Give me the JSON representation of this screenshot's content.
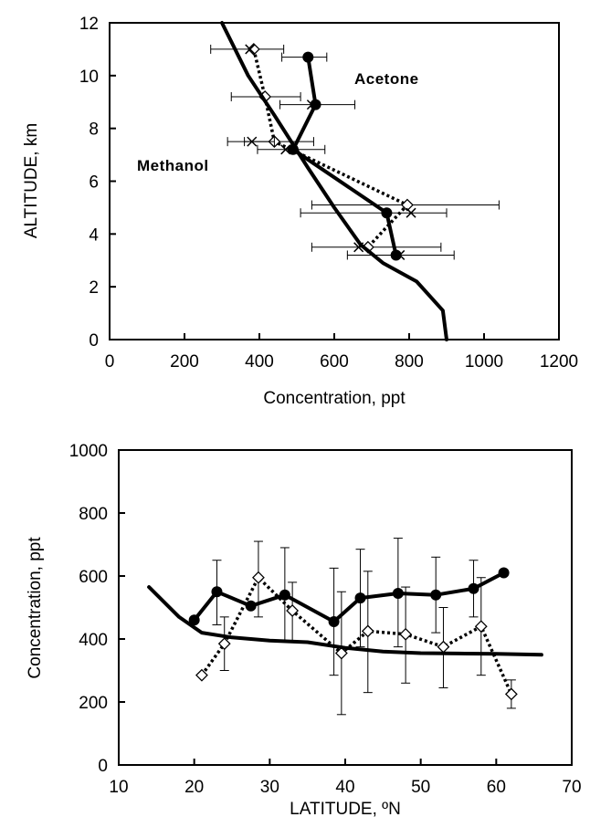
{
  "chart_data": [
    {
      "type": "line",
      "title": "",
      "xlabel": "Concentration, ppt",
      "ylabel": "ALTITUDE, km",
      "xlim": [
        0,
        1200
      ],
      "ylim": [
        0,
        12
      ],
      "xticks": [
        "0",
        "200",
        "400",
        "600",
        "800",
        "1000",
        "1200"
      ],
      "yticks": [
        "0",
        "2",
        "4",
        "6",
        "8",
        "10",
        "12"
      ],
      "grid": false,
      "annotations": [
        {
          "text": "Acetone"
        },
        {
          "text": "Methanol"
        }
      ],
      "series": [
        {
          "style": "thick-solid-filled-circle",
          "points": [
            {
              "x": 530,
              "y": 10.7,
              "xerr_low": 460,
              "xerr_high": 580
            },
            {
              "x": 550,
              "y": 8.9
            },
            {
              "x": 490,
              "y": 7.2
            },
            {
              "x": 740,
              "y": 4.8,
              "xerr_low": 510,
              "xerr_high": 900
            },
            {
              "x": 765,
              "y": 3.2,
              "xerr_low": 635,
              "xerr_high": 920
            }
          ]
        },
        {
          "style": "dotted-open-diamond",
          "points": [
            {
              "x": 385,
              "y": 11.0,
              "xerr_low": 270,
              "xerr_high": 465
            },
            {
              "x": 415,
              "y": 9.2,
              "xerr_low": 325,
              "xerr_high": 510
            },
            {
              "x": 440,
              "y": 7.5,
              "xerr_low": 360,
              "xerr_high": 545
            },
            {
              "x": 795,
              "y": 5.1,
              "xerr_low": 540,
              "xerr_high": 1040
            },
            {
              "x": 690,
              "y": 3.5,
              "xerr_low": 540,
              "xerr_high": 885
            }
          ]
        },
        {
          "style": "cross-markers",
          "points": [
            {
              "x": 375,
              "y": 11.0
            },
            {
              "x": 540,
              "y": 8.9,
              "xerr_low": 455,
              "xerr_high": 655
            },
            {
              "x": 380,
              "y": 7.5,
              "xerr_low": 315,
              "xerr_high": 440
            },
            {
              "x": 470,
              "y": 7.2,
              "xerr_low": 395,
              "xerr_high": 575
            },
            {
              "x": 805,
              "y": 4.8
            },
            {
              "x": 665,
              "y": 3.5
            },
            {
              "x": 775,
              "y": 3.2
            }
          ]
        },
        {
          "style": "thick-solid-line",
          "points": [
            {
              "x": 300,
              "y": 12.0
            },
            {
              "x": 370,
              "y": 10.0
            },
            {
              "x": 440,
              "y": 8.5
            },
            {
              "x": 530,
              "y": 6.5
            },
            {
              "x": 600,
              "y": 5.0
            },
            {
              "x": 670,
              "y": 3.6
            },
            {
              "x": 730,
              "y": 2.9
            },
            {
              "x": 820,
              "y": 2.2
            },
            {
              "x": 890,
              "y": 1.1
            },
            {
              "x": 900,
              "y": 0.0
            }
          ]
        }
      ]
    },
    {
      "type": "line",
      "title": "",
      "xlabel": "LATITUDE, ºN",
      "ylabel": "Concentration, ppt",
      "xlim": [
        10,
        70
      ],
      "ylim": [
        0,
        1000
      ],
      "xticks": [
        "10",
        "20",
        "30",
        "40",
        "50",
        "60",
        "70"
      ],
      "yticks": [
        "0",
        "200",
        "400",
        "600",
        "800",
        "1000"
      ],
      "grid": false,
      "series": [
        {
          "style": "thick-solid-filled-circle",
          "points": [
            {
              "x": 20,
              "y": 460
            },
            {
              "x": 23,
              "y": 550,
              "ylow": 445,
              "yhigh": 650
            },
            {
              "x": 27.5,
              "y": 505
            },
            {
              "x": 32,
              "y": 540,
              "ylow": 390,
              "yhigh": 690
            },
            {
              "x": 38.5,
              "y": 455,
              "ylow": 285,
              "yhigh": 625
            },
            {
              "x": 42,
              "y": 530,
              "ylow": 375,
              "yhigh": 685
            },
            {
              "x": 47,
              "y": 545,
              "ylow": 375,
              "yhigh": 720
            },
            {
              "x": 52,
              "y": 540,
              "ylow": 420,
              "yhigh": 660
            },
            {
              "x": 57,
              "y": 560,
              "ylow": 470,
              "yhigh": 650
            },
            {
              "x": 61,
              "y": 610
            }
          ]
        },
        {
          "style": "dotted-open-diamond",
          "points": [
            {
              "x": 21,
              "y": 285
            },
            {
              "x": 24,
              "y": 385,
              "ylow": 300,
              "yhigh": 470
            },
            {
              "x": 28.5,
              "y": 595,
              "ylow": 470,
              "yhigh": 710
            },
            {
              "x": 33,
              "y": 490,
              "ylow": 395,
              "yhigh": 580
            },
            {
              "x": 39.5,
              "y": 355,
              "ylow": 160,
              "yhigh": 550
            },
            {
              "x": 43,
              "y": 425,
              "ylow": 230,
              "yhigh": 615
            },
            {
              "x": 48,
              "y": 415,
              "ylow": 260,
              "yhigh": 565
            },
            {
              "x": 53,
              "y": 375,
              "ylow": 245,
              "yhigh": 500
            },
            {
              "x": 58,
              "y": 440,
              "ylow": 285,
              "yhigh": 595
            },
            {
              "x": 62,
              "y": 225,
              "ylow": 180,
              "yhigh": 270
            }
          ]
        },
        {
          "style": "thick-solid-line",
          "points": [
            {
              "x": 14,
              "y": 565
            },
            {
              "x": 18,
              "y": 470
            },
            {
              "x": 21,
              "y": 420
            },
            {
              "x": 25,
              "y": 405
            },
            {
              "x": 30,
              "y": 395
            },
            {
              "x": 35,
              "y": 390
            },
            {
              "x": 40,
              "y": 372
            },
            {
              "x": 45,
              "y": 360
            },
            {
              "x": 50,
              "y": 355
            },
            {
              "x": 55,
              "y": 354
            },
            {
              "x": 60,
              "y": 353
            },
            {
              "x": 66,
              "y": 350
            }
          ]
        }
      ]
    }
  ]
}
